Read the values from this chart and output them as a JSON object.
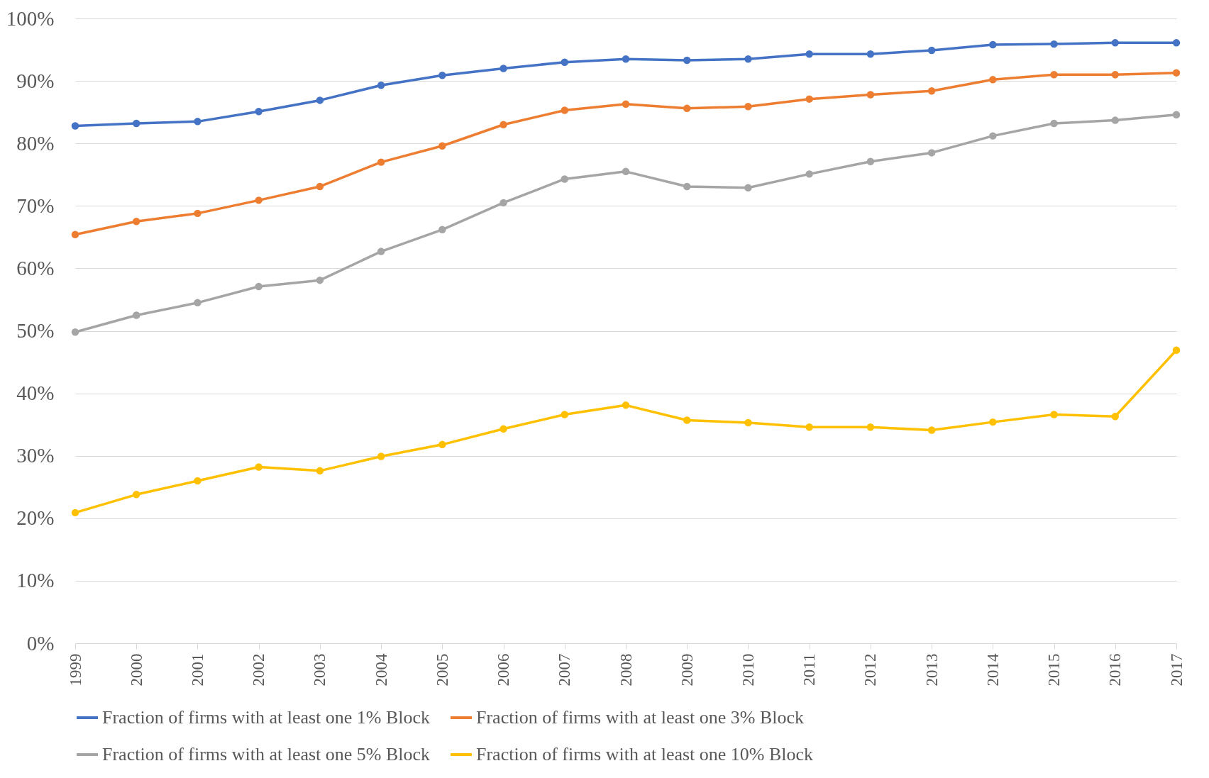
{
  "chart_data": {
    "type": "line",
    "categories": [
      "1999",
      "2000",
      "2001",
      "2002",
      "2003",
      "2004",
      "2005",
      "2006",
      "2007",
      "2008",
      "2009",
      "2010",
      "2011",
      "2012",
      "2013",
      "2014",
      "2015",
      "2016",
      "2017"
    ],
    "series": [
      {
        "name": "Fraction of firms with at least one 1% Block",
        "color": "#4472c4",
        "values": [
          82.8,
          83.2,
          83.5,
          85.1,
          86.9,
          89.3,
          90.9,
          92.0,
          93.0,
          93.5,
          93.3,
          93.5,
          94.3,
          94.3,
          94.9,
          95.8,
          95.9,
          96.1,
          96.1
        ]
      },
      {
        "name": "Fraction of firms with at least one 3% Block",
        "color": "#ed7d31",
        "values": [
          65.4,
          67.5,
          68.8,
          70.9,
          73.1,
          77.0,
          79.6,
          83.0,
          85.3,
          86.3,
          85.6,
          85.9,
          87.1,
          87.8,
          88.4,
          90.2,
          91.0,
          91.0,
          91.3
        ]
      },
      {
        "name": "Fraction of firms with at least one 5% Block",
        "color": "#a5a5a5",
        "values": [
          49.8,
          52.5,
          54.5,
          57.1,
          58.1,
          62.7,
          66.2,
          70.5,
          74.3,
          75.5,
          73.1,
          72.9,
          75.1,
          77.1,
          78.5,
          81.2,
          83.2,
          83.7,
          84.6
        ]
      },
      {
        "name": "Fraction of firms with at least one 10% Block",
        "color": "#ffc000",
        "values": [
          20.9,
          23.8,
          26.0,
          28.2,
          27.6,
          29.9,
          31.8,
          34.3,
          36.6,
          38.1,
          35.7,
          35.3,
          34.6,
          34.6,
          34.1,
          35.4,
          36.6,
          36.3,
          46.9
        ]
      }
    ],
    "ylim": [
      0,
      100
    ],
    "yticks": [
      {
        "value": 0,
        "label": "0%"
      },
      {
        "value": 10,
        "label": "10%"
      },
      {
        "value": 20,
        "label": "20%"
      },
      {
        "value": 30,
        "label": "30%"
      },
      {
        "value": 40,
        "label": "40%"
      },
      {
        "value": 50,
        "label": "50%"
      },
      {
        "value": 60,
        "label": "60%"
      },
      {
        "value": 70,
        "label": "70%"
      },
      {
        "value": 80,
        "label": "80%"
      },
      {
        "value": 90,
        "label": "90%"
      },
      {
        "value": 100,
        "label": "100%"
      }
    ],
    "grid": "y",
    "legend": "bottom",
    "marker": "circle",
    "line_style": "solid"
  }
}
